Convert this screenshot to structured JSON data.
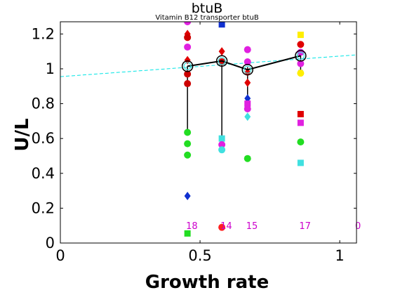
{
  "chart_data": {
    "type": "scatter",
    "title": "btuB",
    "subtitle": "Vitamin B12 transporter btuB",
    "xlabel": "Growth rate",
    "ylabel": "U/L",
    "xlim": [
      0,
      1.06
    ],
    "ylim": [
      0,
      1.27
    ],
    "xticks": [
      {
        "value": 0,
        "label": "0"
      },
      {
        "value": 0.5,
        "label": "0.5"
      },
      {
        "value": 1,
        "label": "1"
      }
    ],
    "yticks": [
      {
        "value": 0,
        "label": "0"
      },
      {
        "value": 0.2,
        "label": "0.2"
      },
      {
        "value": 0.4,
        "label": "0.4"
      },
      {
        "value": 0.6,
        "label": "0.6"
      },
      {
        "value": 0.8,
        "label": "0.8"
      },
      {
        "value": 1.0,
        "label": "1"
      },
      {
        "value": 1.2,
        "label": "1.2"
      }
    ],
    "fit_line": {
      "color": "#00e5e5",
      "x": [
        0,
        1.06
      ],
      "y": [
        0.955,
        1.08
      ]
    },
    "mean_series": {
      "color": "#000000",
      "points": [
        {
          "x": 0.455,
          "y": 1.015,
          "err_low": 0.635,
          "err_high": 1.015
        },
        {
          "x": 0.578,
          "y": 1.045,
          "err_low": 0.54,
          "err_high": 1.045
        },
        {
          "x": 0.67,
          "y": 0.995,
          "err_low": 0.8,
          "err_high": 1.01
        },
        {
          "x": 0.86,
          "y": 1.075,
          "err_low": 0.99,
          "err_high": 1.09
        }
      ]
    },
    "markers": [
      {
        "x": 0.455,
        "y": 1.27,
        "shape": "circle",
        "color": "#e020e0"
      },
      {
        "x": 0.455,
        "y": 1.2,
        "shape": "diamond",
        "color": "#e00000"
      },
      {
        "x": 0.455,
        "y": 1.18,
        "shape": "circle",
        "color": "#cc0000"
      },
      {
        "x": 0.455,
        "y": 1.125,
        "shape": "circle",
        "color": "#e020e0"
      },
      {
        "x": 0.455,
        "y": 1.05,
        "shape": "diamond",
        "color": "#e00000"
      },
      {
        "x": 0.455,
        "y": 0.97,
        "shape": "circle",
        "color": "#cc0000"
      },
      {
        "x": 0.455,
        "y": 0.915,
        "shape": "circle",
        "color": "#cc0000"
      },
      {
        "x": 0.455,
        "y": 0.635,
        "shape": "circle",
        "color": "#22dd22"
      },
      {
        "x": 0.455,
        "y": 0.57,
        "shape": "circle",
        "color": "#22dd22"
      },
      {
        "x": 0.455,
        "y": 0.505,
        "shape": "circle",
        "color": "#22dd22"
      },
      {
        "x": 0.455,
        "y": 0.27,
        "shape": "diamond",
        "color": "#1030d0"
      },
      {
        "x": 0.455,
        "y": 0.055,
        "shape": "square",
        "color": "#22dd22"
      },
      {
        "x": 0.578,
        "y": 1.255,
        "shape": "square",
        "color": "#1030d0"
      },
      {
        "x": 0.578,
        "y": 1.1,
        "shape": "diamond",
        "color": "#e00000"
      },
      {
        "x": 0.578,
        "y": 1.04,
        "shape": "circle",
        "color": "#cc0000"
      },
      {
        "x": 0.578,
        "y": 0.6,
        "shape": "square",
        "color": "#40e0e0"
      },
      {
        "x": 0.578,
        "y": 0.565,
        "shape": "circle",
        "color": "#e020e0"
      },
      {
        "x": 0.578,
        "y": 0.535,
        "shape": "circle",
        "color": "#40e0e0"
      },
      {
        "x": 0.578,
        "y": 0.09,
        "shape": "circle",
        "color": "#ff2020"
      },
      {
        "x": 0.67,
        "y": 1.11,
        "shape": "circle",
        "color": "#e020e0"
      },
      {
        "x": 0.67,
        "y": 1.04,
        "shape": "circle",
        "color": "#e020e0"
      },
      {
        "x": 0.67,
        "y": 0.98,
        "shape": "diamond",
        "color": "#e00000"
      },
      {
        "x": 0.67,
        "y": 0.92,
        "shape": "diamond",
        "color": "#e00000"
      },
      {
        "x": 0.67,
        "y": 0.83,
        "shape": "diamond",
        "color": "#1030d0"
      },
      {
        "x": 0.67,
        "y": 0.8,
        "shape": "square",
        "color": "#e020e0"
      },
      {
        "x": 0.67,
        "y": 0.77,
        "shape": "circle",
        "color": "#e020e0"
      },
      {
        "x": 0.67,
        "y": 0.725,
        "shape": "diamond",
        "color": "#40e0e0"
      },
      {
        "x": 0.67,
        "y": 0.485,
        "shape": "circle",
        "color": "#22dd22"
      },
      {
        "x": 0.86,
        "y": 1.195,
        "shape": "square",
        "color": "#ffee00"
      },
      {
        "x": 0.86,
        "y": 1.14,
        "shape": "circle",
        "color": "#e00000"
      },
      {
        "x": 0.86,
        "y": 1.095,
        "shape": "circle",
        "color": "#e020e0"
      },
      {
        "x": 0.86,
        "y": 1.03,
        "shape": "circle",
        "color": "#e020e0"
      },
      {
        "x": 0.86,
        "y": 0.975,
        "shape": "circle",
        "color": "#ffee00"
      },
      {
        "x": 0.86,
        "y": 0.74,
        "shape": "square",
        "color": "#e00000"
      },
      {
        "x": 0.86,
        "y": 0.69,
        "shape": "square",
        "color": "#e020e0"
      },
      {
        "x": 0.86,
        "y": 0.58,
        "shape": "circle",
        "color": "#22dd22"
      },
      {
        "x": 0.86,
        "y": 0.46,
        "shape": "square",
        "color": "#40e0e0"
      }
    ],
    "count_labels": [
      {
        "x": 0.455,
        "y": 0.1,
        "text": "18"
      },
      {
        "x": 0.578,
        "y": 0.1,
        "text": "14"
      },
      {
        "x": 0.67,
        "y": 0.1,
        "text": "15"
      },
      {
        "x": 0.86,
        "y": 0.1,
        "text": "17"
      },
      {
        "x": 1.06,
        "y": 0.1,
        "text": "0"
      }
    ]
  }
}
